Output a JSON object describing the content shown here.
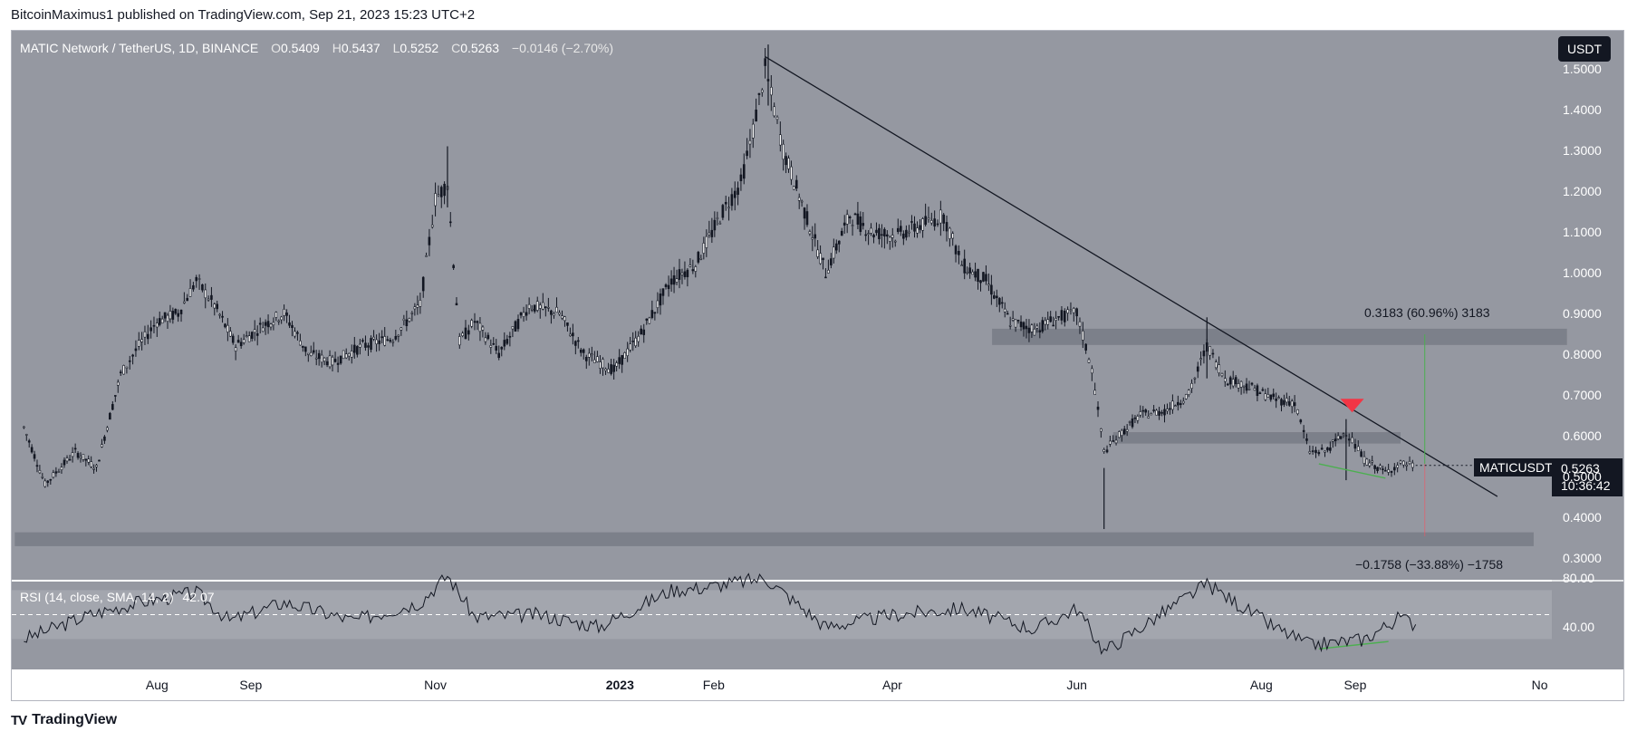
{
  "header": {
    "publisher": "BitcoinMaximus1 published on TradingView.com, Sep 21, 2023 15:23 UTC+2"
  },
  "footer": {
    "brand": "TradingView",
    "logo": "TV"
  },
  "legend": {
    "symbol": "MATIC Network / TetherUS, 1D, BINANCE",
    "o_label": "O",
    "o": "0.5409",
    "h_label": "H",
    "h": "0.5437",
    "l_label": "L",
    "l": "0.5252",
    "c_label": "C",
    "c": "0.5263",
    "change": "−0.0146 (−2.70%)"
  },
  "rsi_legend": {
    "label": "RSI (14, close, SMA, 14, 2)",
    "value": "42.07"
  },
  "currency": "USDT",
  "ticker": {
    "name": "MATICUSDT",
    "price": "0.5263",
    "countdown": "10:36:42"
  },
  "fib": {
    "upper": "0.3183 (60.96%) 3183",
    "lower": "−0.1758 (−33.88%) −1758"
  },
  "colors": {
    "chart_bg": "#9598a1",
    "rsi_band": "#a3a6ae",
    "zone": "#787b86",
    "up_line": "#4caf50",
    "marker": "#f23645",
    "label_bg": "#131722"
  },
  "chart_data": {
    "type": "candlestick",
    "title": "MATIC Network / TetherUS, 1D, BINANCE",
    "y_ticks": [
      "1.5000",
      "1.4000",
      "1.3000",
      "1.2000",
      "1.1000",
      "1.0000",
      "0.9000",
      "0.8000",
      "0.7000",
      "0.6000",
      "0.5000",
      "0.4000",
      "0.3000"
    ],
    "ylim": [
      0.27,
      1.58
    ],
    "rsi_ticks": [
      "80.00",
      "40.00"
    ],
    "x_ticks": [
      {
        "label": "Aug",
        "bold": false
      },
      {
        "label": "Sep",
        "bold": false
      },
      {
        "label": "Nov",
        "bold": false
      },
      {
        "label": "2023",
        "bold": true
      },
      {
        "label": "Feb",
        "bold": false
      },
      {
        "label": "Apr",
        "bold": false
      },
      {
        "label": "Jun",
        "bold": false
      },
      {
        "label": "Aug",
        "bold": false
      },
      {
        "label": "Sep",
        "bold": false
      },
      {
        "label": "No",
        "bold": false
      }
    ],
    "price_series": [
      [
        "2022-06-18",
        0.62
      ],
      [
        "2022-06-25",
        0.48
      ],
      [
        "2022-07-05",
        0.56
      ],
      [
        "2022-07-12",
        0.52
      ],
      [
        "2022-07-20",
        0.75
      ],
      [
        "2022-07-26",
        0.82
      ],
      [
        "2022-08-01",
        0.88
      ],
      [
        "2022-08-08",
        0.9
      ],
      [
        "2022-08-14",
        0.98
      ],
      [
        "2022-08-20",
        0.92
      ],
      [
        "2022-08-27",
        0.82
      ],
      [
        "2022-09-05",
        0.87
      ],
      [
        "2022-09-12",
        0.9
      ],
      [
        "2022-09-20",
        0.8
      ],
      [
        "2022-09-28",
        0.78
      ],
      [
        "2022-10-08",
        0.82
      ],
      [
        "2022-10-18",
        0.84
      ],
      [
        "2022-10-27",
        0.92
      ],
      [
        "2022-11-01",
        1.18
      ],
      [
        "2022-11-05",
        1.22
      ],
      [
        "2022-11-09",
        0.83
      ],
      [
        "2022-11-14",
        0.88
      ],
      [
        "2022-11-22",
        0.8
      ],
      [
        "2022-12-02",
        0.92
      ],
      [
        "2022-12-12",
        0.9
      ],
      [
        "2022-12-20",
        0.8
      ],
      [
        "2022-12-30",
        0.76
      ],
      [
        "2023-01-08",
        0.85
      ],
      [
        "2023-01-18",
        0.98
      ],
      [
        "2023-01-26",
        1.02
      ],
      [
        "2023-02-04",
        1.15
      ],
      [
        "2023-02-10",
        1.22
      ],
      [
        "2023-02-14",
        1.35
      ],
      [
        "2023-02-18",
        1.5
      ],
      [
        "2023-02-24",
        1.3
      ],
      [
        "2023-03-03",
        1.15
      ],
      [
        "2023-03-10",
        1.0
      ],
      [
        "2023-03-18",
        1.14
      ],
      [
        "2023-03-25",
        1.1
      ],
      [
        "2023-04-02",
        1.09
      ],
      [
        "2023-04-12",
        1.12
      ],
      [
        "2023-04-18",
        1.14
      ],
      [
        "2023-04-24",
        1.02
      ],
      [
        "2023-05-02",
        0.98
      ],
      [
        "2023-05-10",
        0.88
      ],
      [
        "2023-05-18",
        0.86
      ],
      [
        "2023-05-26",
        0.89
      ],
      [
        "2023-06-01",
        0.9
      ],
      [
        "2023-06-06",
        0.76
      ],
      [
        "2023-06-10",
        0.56
      ],
      [
        "2023-06-15",
        0.6
      ],
      [
        "2023-06-22",
        0.65
      ],
      [
        "2023-06-30",
        0.66
      ],
      [
        "2023-07-08",
        0.7
      ],
      [
        "2023-07-14",
        0.82
      ],
      [
        "2023-07-20",
        0.74
      ],
      [
        "2023-07-28",
        0.72
      ],
      [
        "2023-08-05",
        0.69
      ],
      [
        "2023-08-12",
        0.68
      ],
      [
        "2023-08-17",
        0.56
      ],
      [
        "2023-08-22",
        0.56
      ],
      [
        "2023-08-29",
        0.61
      ],
      [
        "2023-09-04",
        0.54
      ],
      [
        "2023-09-11",
        0.51
      ],
      [
        "2023-09-16",
        0.53
      ],
      [
        "2023-09-21",
        0.5263
      ]
    ],
    "rsi_series": [
      [
        "2022-06-18",
        30
      ],
      [
        "2022-07-10",
        50
      ],
      [
        "2022-07-26",
        60
      ],
      [
        "2022-08-14",
        68
      ],
      [
        "2022-08-25",
        45
      ],
      [
        "2022-09-12",
        60
      ],
      [
        "2022-10-05",
        45
      ],
      [
        "2022-10-27",
        60
      ],
      [
        "2022-11-05",
        82
      ],
      [
        "2022-11-14",
        48
      ],
      [
        "2022-12-05",
        50
      ],
      [
        "2022-12-25",
        40
      ],
      [
        "2023-01-18",
        70
      ],
      [
        "2023-01-28",
        72
      ],
      [
        "2023-02-18",
        80
      ],
      [
        "2023-03-10",
        40
      ],
      [
        "2023-04-02",
        50
      ],
      [
        "2023-04-24",
        55
      ],
      [
        "2023-05-18",
        38
      ],
      [
        "2023-06-01",
        55
      ],
      [
        "2023-06-10",
        20
      ],
      [
        "2023-07-14",
        75
      ],
      [
        "2023-08-05",
        40
      ],
      [
        "2023-08-17",
        25
      ],
      [
        "2023-09-04",
        30
      ],
      [
        "2023-09-16",
        48
      ],
      [
        "2023-09-21",
        42
      ]
    ],
    "trendline": [
      [
        "2023-02-18",
        1.53
      ],
      [
        "2023-10-18",
        0.45
      ]
    ],
    "zones": [
      {
        "from": "2023-05-04",
        "to": "2023-11-10",
        "lo": 0.822,
        "hi": 0.862
      },
      {
        "from": "2023-06-13",
        "to": "2023-09-16",
        "lo": 0.58,
        "hi": 0.608
      },
      {
        "from": "2022-06-15",
        "to": "2023-10-30",
        "lo": 0.328,
        "hi": 0.362
      }
    ]
  }
}
